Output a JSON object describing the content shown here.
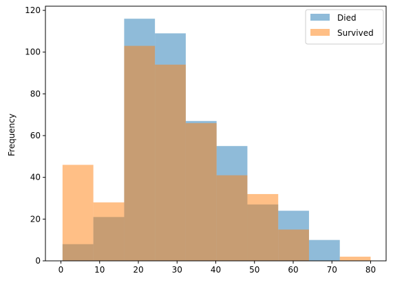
{
  "chart_data": {
    "type": "bar",
    "title": "",
    "xlabel": "",
    "ylabel": "Frequency",
    "xlim": [
      -4,
      84
    ],
    "ylim": [
      0,
      122
    ],
    "bin_edges": [
      0.42,
      8.38,
      16.34,
      24.29,
      32.25,
      40.21,
      48.17,
      56.13,
      64.08,
      72.04,
      80.0
    ],
    "x_ticks": [
      0,
      10,
      20,
      30,
      40,
      50,
      60,
      70,
      80
    ],
    "y_ticks": [
      0,
      20,
      40,
      60,
      80,
      100,
      120
    ],
    "grid": false,
    "legend_position": "top-right",
    "series": [
      {
        "name": "Died",
        "color": "#1f77b4",
        "opacity": 0.5,
        "values": [
          8,
          21,
          116,
          109,
          67,
          55,
          27,
          24,
          10,
          0
        ]
      },
      {
        "name": "Survived",
        "color": "#ff7f0e",
        "opacity": 0.5,
        "values": [
          46,
          28,
          103,
          94,
          66,
          41,
          32,
          15,
          0,
          2
        ]
      }
    ]
  }
}
